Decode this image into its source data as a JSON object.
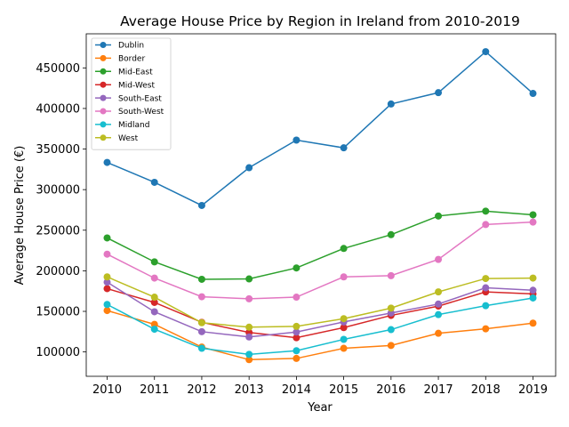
{
  "chart_data": {
    "type": "line",
    "title": "Average House Price by Region in Ireland from 2010-2019",
    "xlabel": "Year",
    "ylabel": "Average House Price (€)",
    "categories": [
      "2010",
      "2011",
      "2012",
      "2013",
      "2014",
      "2015",
      "2016",
      "2017",
      "2018",
      "2019"
    ],
    "ylim": [
      70000,
      492000
    ],
    "yticks": [
      100000,
      150000,
      200000,
      250000,
      300000,
      350000,
      400000,
      450000
    ],
    "grid": false,
    "legend": "top-left",
    "series": [
      {
        "name": "Dublin",
        "color": "#1f77b4",
        "values": [
          333500,
          309000,
          280500,
          327000,
          361000,
          351500,
          405500,
          419500,
          470000,
          418500
        ]
      },
      {
        "name": "Border",
        "color": "#ff7f0e",
        "values": [
          151000,
          134000,
          106000,
          90500,
          92000,
          104500,
          108000,
          123000,
          128500,
          135500
        ]
      },
      {
        "name": "Mid-East",
        "color": "#2ca02c",
        "values": [
          240500,
          211000,
          189500,
          190000,
          203500,
          227500,
          244500,
          267500,
          273500,
          269000
        ]
      },
      {
        "name": "Mid-West",
        "color": "#d62728",
        "values": [
          178000,
          161000,
          136500,
          124000,
          117500,
          130000,
          145000,
          156500,
          174000,
          171500
        ]
      },
      {
        "name": "South-East",
        "color": "#9467bd",
        "values": [
          186000,
          149500,
          125000,
          118500,
          124500,
          137000,
          148000,
          159000,
          179000,
          176000
        ]
      },
      {
        "name": "South-West",
        "color": "#e377c2",
        "values": [
          220500,
          191000,
          168000,
          165500,
          167500,
          192500,
          194000,
          214000,
          257000,
          260000
        ]
      },
      {
        "name": "Midland",
        "color": "#17becf",
        "values": [
          158500,
          128000,
          104500,
          97000,
          101500,
          115500,
          127500,
          146000,
          157000,
          166500
        ]
      },
      {
        "name": "West",
        "color": "#bcbd22",
        "values": [
          192500,
          167500,
          136000,
          130500,
          131500,
          141000,
          154000,
          174000,
          190500,
          191000
        ]
      }
    ]
  }
}
